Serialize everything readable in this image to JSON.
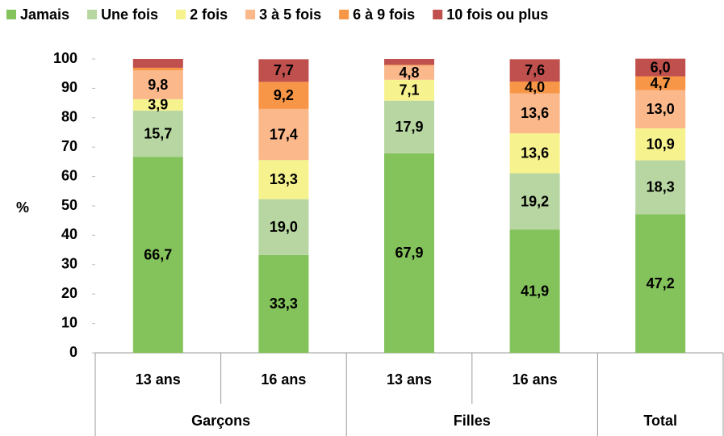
{
  "chart_data": {
    "type": "stacked_bar",
    "categories": [
      "13 ans",
      "16 ans",
      "13 ans",
      "16 ans",
      null
    ],
    "groups": [
      "Garçons",
      "Filles",
      "Total"
    ],
    "y_label": "%",
    "ylim": [
      0,
      100
    ],
    "yticks": [
      0,
      10,
      20,
      30,
      40,
      50,
      60,
      70,
      80,
      90,
      100
    ],
    "grid": false,
    "legend": "top",
    "series": [
      {
        "name": "Jamais",
        "color": "#84c35c",
        "values": [
          66.7,
          33.3,
          67.9,
          41.9,
          47.2
        ],
        "value_labels": [
          "66,7",
          "33,3",
          "67,9",
          "41,9",
          "47,2"
        ]
      },
      {
        "name": "Une fois",
        "color": "#b8d6a1",
        "values": [
          15.7,
          19.0,
          17.9,
          19.2,
          18.3
        ],
        "value_labels": [
          "15,7",
          "19,0",
          "17,9",
          "19,2",
          "18,3"
        ]
      },
      {
        "name": "2 fois",
        "color": "#f6f28e",
        "values": [
          3.9,
          13.3,
          7.1,
          13.6,
          10.9
        ],
        "value_labels": [
          "3,9",
          "13,3",
          "7,1",
          "13,6",
          "10,9"
        ]
      },
      {
        "name": "3 à 5 fois",
        "color": "#fbb88b",
        "values": [
          9.8,
          17.4,
          4.8,
          13.6,
          13.0
        ],
        "value_labels": [
          "9,8",
          "17,4",
          "4,8",
          "13,6",
          "13,0"
        ]
      },
      {
        "name": "6 à 9 fois",
        "color": "#f79646",
        "values": [
          0.9,
          9.2,
          0.3,
          4.0,
          4.7
        ],
        "value_labels": [
          null,
          "9,2",
          null,
          "4,0",
          "4,7"
        ]
      },
      {
        "name": "10 fois ou plus",
        "color": "#c0504d",
        "values": [
          3.0,
          7.7,
          2.0,
          7.6,
          6.0
        ],
        "value_labels": [
          null,
          "7,7",
          null,
          "7,6",
          "6,0"
        ]
      }
    ]
  }
}
